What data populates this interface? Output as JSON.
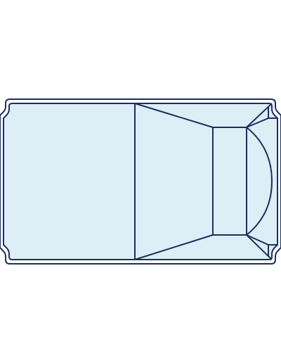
{
  "diagram": {
    "subject": "pool-plan-outline",
    "colors": {
      "background": "#ffffff",
      "water_fill": "#ddeef7",
      "outline": "#1b2f5e"
    }
  }
}
